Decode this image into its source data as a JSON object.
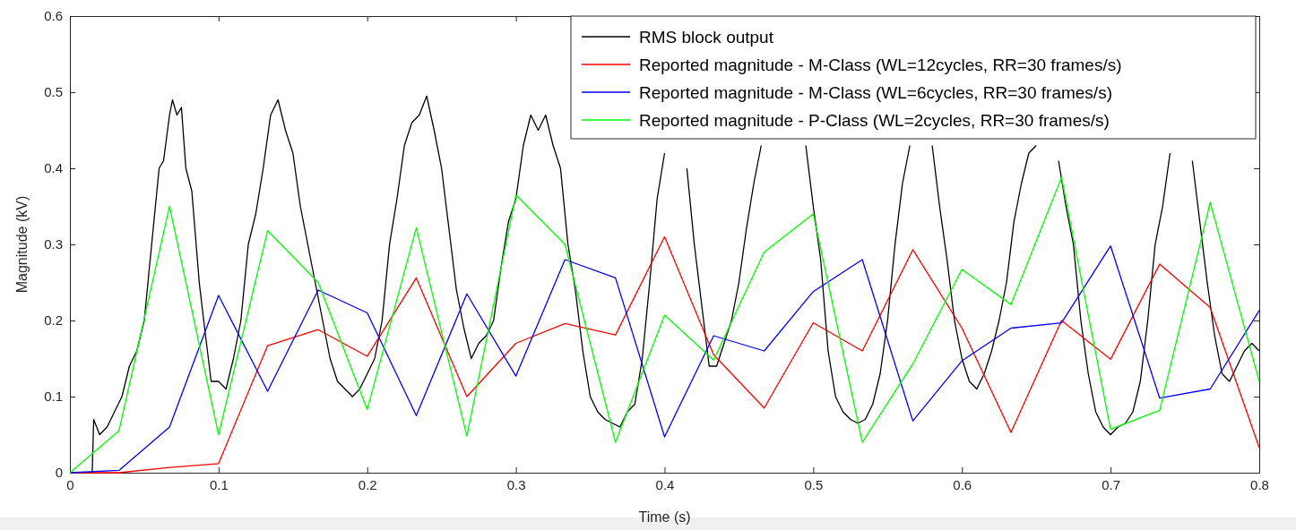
{
  "chart_data": {
    "type": "line",
    "xlabel": "Time (s)",
    "ylabel": "Magnitude (kV)",
    "xlim": [
      0,
      0.8
    ],
    "ylim": [
      0,
      0.6
    ],
    "xticks": [
      0,
      0.1,
      0.2,
      0.3,
      0.4,
      0.5,
      0.6,
      0.7,
      0.8
    ],
    "yticks": [
      0,
      0.1,
      0.2,
      0.3,
      0.4,
      0.5,
      0.6
    ],
    "grid": false,
    "legend": "top right",
    "marker": "none",
    "line_style": "solid",
    "x": [
      0,
      0.033,
      0.067,
      0.1,
      0.133,
      0.167,
      0.2,
      0.233,
      0.267,
      0.3,
      0.333,
      0.367,
      0.4,
      0.433,
      0.467,
      0.5,
      0.533,
      0.567,
      0.6,
      0.633,
      0.667,
      0.7,
      0.733,
      0.767,
      0.8
    ],
    "series": [
      {
        "name": "RMS block output",
        "color": "#000000",
        "x": [
          0,
          0.015,
          0.016,
          0.02,
          0.025,
          0.03,
          0.035,
          0.04,
          0.045,
          0.05,
          0.055,
          0.06,
          0.063,
          0.067,
          0.069,
          0.072,
          0.075,
          0.078,
          0.082,
          0.087,
          0.09,
          0.095,
          0.1,
          0.105,
          0.11,
          0.115,
          0.12,
          0.125,
          0.13,
          0.135,
          0.14,
          0.145,
          0.15,
          0.155,
          0.16,
          0.165,
          0.17,
          0.175,
          0.18,
          0.185,
          0.19,
          0.195,
          0.2,
          0.205,
          0.21,
          0.215,
          0.22,
          0.225,
          0.23,
          0.235,
          0.24,
          0.245,
          0.25,
          0.255,
          0.26,
          0.265,
          0.27,
          0.275,
          0.28,
          0.285,
          0.29,
          0.295,
          0.3,
          0.305,
          0.31,
          0.315,
          0.32,
          0.325,
          0.33,
          0.335,
          0.34,
          0.345,
          0.35,
          0.355,
          0.36,
          0.365,
          0.37,
          0.375,
          0.38,
          0.385,
          0.39,
          0.395,
          0.4,
          0.405,
          0.41,
          0.415,
          0.42,
          0.425,
          0.43,
          0.435,
          0.44,
          0.445,
          0.45,
          0.455,
          0.46,
          0.465,
          0.47,
          0.48,
          0.49,
          0.495,
          0.5,
          0.505,
          0.51,
          0.515,
          0.52,
          0.525,
          0.53,
          0.535,
          0.54,
          0.545,
          0.55,
          0.555,
          0.56,
          0.565,
          0.57,
          0.575,
          0.58,
          0.585,
          0.59,
          0.595,
          0.6,
          0.605,
          0.61,
          0.615,
          0.62,
          0.625,
          0.63,
          0.635,
          0.64,
          0.645,
          0.65,
          0.655,
          0.66,
          0.665,
          0.67,
          0.675,
          0.68,
          0.685,
          0.69,
          0.695,
          0.7,
          0.705,
          0.71,
          0.715,
          0.72,
          0.725,
          0.73,
          0.735,
          0.74,
          0.745,
          0.75,
          0.755,
          0.76,
          0.765,
          0.77,
          0.775,
          0.78,
          0.785,
          0.79,
          0.795,
          0.8
        ],
        "values": [
          0,
          0,
          0.07,
          0.05,
          0.06,
          0.08,
          0.1,
          0.14,
          0.16,
          0.2,
          0.3,
          0.4,
          0.41,
          0.47,
          0.49,
          0.47,
          0.48,
          0.4,
          0.37,
          0.25,
          0.2,
          0.12,
          0.12,
          0.11,
          0.15,
          0.2,
          0.3,
          0.34,
          0.4,
          0.47,
          0.49,
          0.45,
          0.42,
          0.35,
          0.3,
          0.25,
          0.2,
          0.15,
          0.12,
          0.11,
          0.1,
          0.11,
          0.13,
          0.15,
          0.2,
          0.3,
          0.36,
          0.43,
          0.46,
          0.47,
          0.495,
          0.45,
          0.4,
          0.32,
          0.24,
          0.19,
          0.15,
          0.17,
          0.18,
          0.2,
          0.27,
          0.33,
          0.36,
          0.43,
          0.47,
          0.45,
          0.47,
          0.43,
          0.4,
          0.3,
          0.24,
          0.16,
          0.1,
          0.08,
          0.07,
          0.065,
          0.06,
          0.08,
          0.09,
          0.15,
          0.25,
          0.36,
          0.42,
          null,
          null,
          0.4,
          0.3,
          0.22,
          0.14,
          0.14,
          0.17,
          0.2,
          0.25,
          0.32,
          0.38,
          0.43,
          null,
          null,
          null,
          0.43,
          0.35,
          0.28,
          0.16,
          0.1,
          0.08,
          0.07,
          0.065,
          0.07,
          0.09,
          0.13,
          0.2,
          0.3,
          0.38,
          0.43,
          null,
          null,
          0.43,
          0.35,
          0.28,
          0.2,
          0.15,
          0.12,
          0.11,
          0.13,
          0.16,
          0.2,
          0.25,
          0.33,
          0.38,
          0.42,
          0.43,
          null,
          null,
          0.41,
          0.35,
          0.3,
          0.2,
          0.13,
          0.08,
          0.06,
          0.05,
          0.06,
          0.065,
          0.08,
          0.12,
          0.2,
          0.3,
          0.35,
          0.42,
          null,
          null,
          0.41,
          0.33,
          0.25,
          0.18,
          0.13,
          0.12,
          0.14,
          0.16,
          0.17,
          0.16
        ]
      },
      {
        "name": "Reported magnitude - M-Class (WL=12cycles, RR=30 frames/s)",
        "color": "#ff0000",
        "values": [
          0,
          0,
          0.007,
          0.012,
          0.167,
          0.188,
          0.153,
          0.256,
          0.1,
          0.17,
          0.196,
          0.181,
          0.31,
          0.155,
          0.085,
          0.197,
          0.16,
          0.293,
          0.19,
          0.053,
          0.2,
          0.149,
          0.274,
          0.217,
          0.033
        ]
      },
      {
        "name": "Reported magnitude - M-Class (WL=6cycles, RR=30 frames/s)",
        "color": "#0000ff",
        "values": [
          0,
          0.003,
          0.06,
          0.233,
          0.107,
          0.24,
          0.21,
          0.075,
          0.235,
          0.127,
          0.28,
          0.256,
          0.047,
          0.18,
          0.16,
          0.238,
          0.28,
          0.068,
          0.147,
          0.19,
          0.197,
          0.298,
          0.098,
          0.11,
          0.213
        ]
      },
      {
        "name": "Reported magnitude - P-Class (WL=2cycles, RR=30 frames/s)",
        "color": "#00ff00",
        "values": [
          0,
          0.055,
          0.35,
          0.05,
          0.318,
          0.25,
          0.083,
          0.322,
          0.048,
          0.365,
          0.3,
          0.04,
          0.207,
          0.148,
          0.29,
          0.34,
          0.04,
          0.143,
          0.267,
          0.221,
          0.388,
          0.057,
          0.082,
          0.355,
          0.12
        ]
      }
    ]
  }
}
